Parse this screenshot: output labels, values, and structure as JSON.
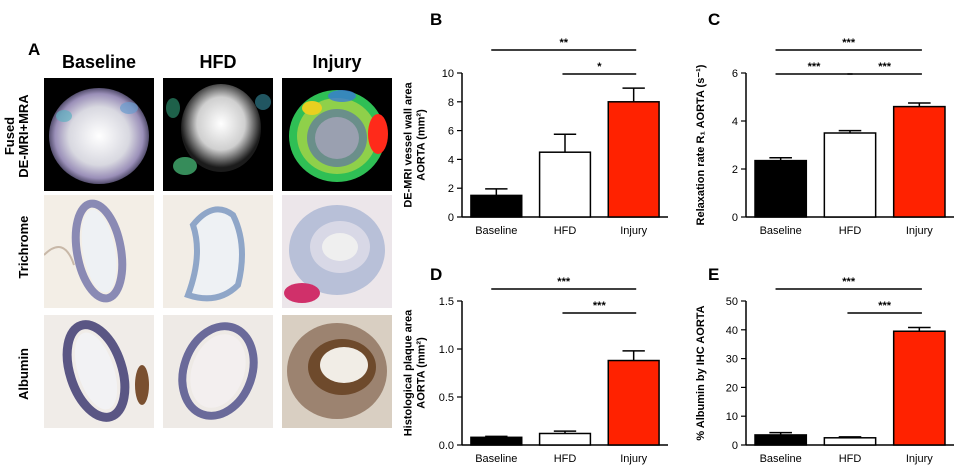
{
  "panel_labels": {
    "a": "A",
    "b": "B",
    "c": "C",
    "d": "D",
    "e": "E"
  },
  "image_panel": {
    "columns": [
      "Baseline",
      "HFD",
      "Injury"
    ],
    "rows": [
      {
        "line1": "Fused",
        "line2": "DE-MRI+MRA"
      },
      {
        "line1": "Trichrome",
        "line2": ""
      },
      {
        "line1": "Albumin",
        "line2": ""
      }
    ]
  },
  "colors": {
    "baseline": "#000000",
    "hfd": "#ffffff",
    "injury": "#ff2200"
  },
  "chart_data": [
    {
      "id": "B",
      "type": "bar",
      "categories": [
        "Baseline",
        "HFD",
        "Injury"
      ],
      "values": [
        1.5,
        4.5,
        8.0
      ],
      "errors": [
        0.45,
        1.25,
        0.95
      ],
      "ylabel_lines": [
        "DE-MRI vessel wall area",
        "AORTA (mm²)"
      ],
      "ylim": [
        0,
        10
      ],
      "yticks": [
        "0",
        "2",
        "4",
        "6",
        "8",
        "10"
      ],
      "significance": [
        {
          "from": 0,
          "to": 2,
          "label": "**"
        },
        {
          "from": 1,
          "to": 2,
          "label": "*"
        }
      ]
    },
    {
      "id": "C",
      "type": "bar",
      "categories": [
        "Baseline",
        "HFD",
        "Injury"
      ],
      "values": [
        2.35,
        3.5,
        4.6
      ],
      "errors": [
        0.12,
        0.1,
        0.15
      ],
      "ylabel_lines": [
        "Relaxation rate R₁ AORTA (s⁻¹)"
      ],
      "ylim": [
        0,
        6
      ],
      "yticks": [
        "0",
        "2",
        "4",
        "6"
      ],
      "significance": [
        {
          "from": 0,
          "to": 2,
          "label": "***"
        },
        {
          "from": 0,
          "to": 1,
          "label": "***"
        },
        {
          "from": 1,
          "to": 2,
          "label": "***"
        }
      ]
    },
    {
      "id": "D",
      "type": "bar",
      "categories": [
        "Baseline",
        "HFD",
        "Injury"
      ],
      "values": [
        0.08,
        0.12,
        0.88
      ],
      "errors": [
        0.01,
        0.025,
        0.1
      ],
      "ylabel_lines": [
        "Histological plaque area",
        "AORTA (mm²)"
      ],
      "ylim": [
        0,
        1.5
      ],
      "yticks": [
        "0.0",
        "0.5",
        "1.0",
        "1.5"
      ],
      "significance": [
        {
          "from": 0,
          "to": 2,
          "label": "***"
        },
        {
          "from": 1,
          "to": 2,
          "label": "***"
        }
      ]
    },
    {
      "id": "E",
      "type": "bar",
      "categories": [
        "Baseline",
        "HFD",
        "Injury"
      ],
      "values": [
        3.5,
        2.5,
        39.5
      ],
      "errors": [
        0.8,
        0.3,
        1.3
      ],
      "ylabel_lines": [
        "% Albumin by IHC AORTA"
      ],
      "ylim": [
        0,
        50
      ],
      "yticks": [
        "0",
        "10",
        "20",
        "30",
        "40",
        "50"
      ],
      "significance": [
        {
          "from": 0,
          "to": 2,
          "label": "***"
        },
        {
          "from": 1,
          "to": 2,
          "label": "***"
        }
      ]
    }
  ]
}
